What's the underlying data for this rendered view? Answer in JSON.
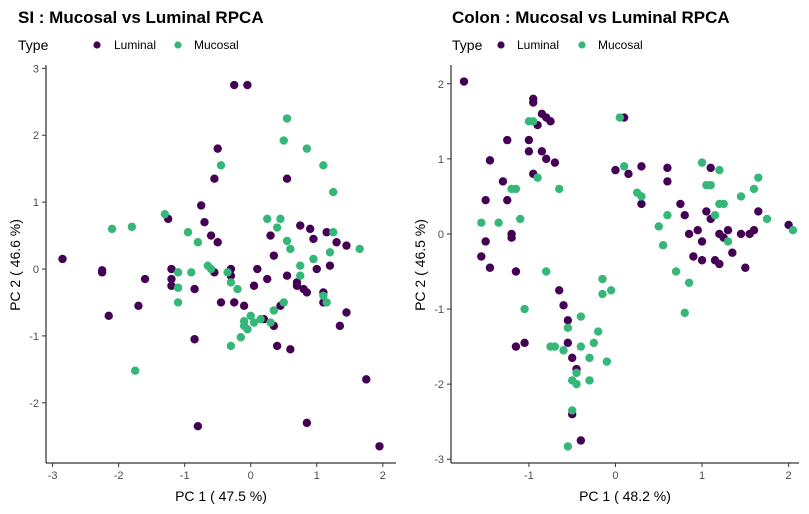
{
  "colors": {
    "Luminal": "#440154",
    "Mucosal": "#35b779"
  },
  "chart_data": [
    {
      "type": "scatter",
      "title": "SI : Mucosal vs Luminal RPCA",
      "legend_title": "Type",
      "legend_position": "top-left",
      "xlabel": "PC 1 ( 47.5 %)",
      "ylabel": "PC 2 ( 46.6 %)",
      "xlim": [
        -3.1,
        2.2
      ],
      "ylim": [
        -2.9,
        3.05
      ],
      "xticks": [
        -3,
        -2,
        -1,
        0,
        1,
        2
      ],
      "yticks": [
        -2,
        -1,
        0,
        1,
        2,
        3
      ],
      "grid": false,
      "series": [
        {
          "name": "Luminal",
          "points": [
            [
              -2.85,
              0.15
            ],
            [
              -2.25,
              -0.02
            ],
            [
              -2.25,
              -0.05
            ],
            [
              -2.15,
              -0.7
            ],
            [
              -1.7,
              -0.55
            ],
            [
              -1.6,
              -0.15
            ],
            [
              -1.2,
              -0.25
            ],
            [
              -1.2,
              -0.15
            ],
            [
              -1.2,
              0.0
            ],
            [
              -0.85,
              -0.3
            ],
            [
              -0.7,
              0.7
            ],
            [
              -0.75,
              0.95
            ],
            [
              -0.6,
              0.5
            ],
            [
              -0.55,
              1.35
            ],
            [
              -0.5,
              0.4
            ],
            [
              -0.45,
              -0.5
            ],
            [
              -0.3,
              0.0
            ],
            [
              -0.3,
              -0.1
            ],
            [
              -0.25,
              -0.5
            ],
            [
              -0.25,
              2.75
            ],
            [
              -0.05,
              2.75
            ],
            [
              -0.1,
              -0.55
            ],
            [
              0.1,
              0.0
            ],
            [
              0.05,
              -0.25
            ],
            [
              0.2,
              -0.75
            ],
            [
              0.25,
              -0.15
            ],
            [
              0.35,
              -0.85
            ],
            [
              0.35,
              0.2
            ],
            [
              0.45,
              -0.55
            ],
            [
              0.55,
              -0.1
            ],
            [
              0.6,
              -1.2
            ],
            [
              0.7,
              -0.2
            ],
            [
              0.75,
              0.65
            ],
            [
              0.7,
              -0.25
            ],
            [
              0.85,
              -0.35
            ],
            [
              0.8,
              -0.3
            ],
            [
              0.9,
              0.6
            ],
            [
              0.95,
              0.45
            ],
            [
              1.0,
              0.0
            ],
            [
              1.1,
              -0.35
            ],
            [
              1.1,
              -0.5
            ],
            [
              1.15,
              0.55
            ],
            [
              1.2,
              0.05
            ],
            [
              1.3,
              0.4
            ],
            [
              1.35,
              -0.85
            ],
            [
              1.45,
              0.35
            ],
            [
              1.45,
              -0.65
            ],
            [
              1.75,
              -1.65
            ],
            [
              1.95,
              -2.65
            ],
            [
              -0.85,
              -1.05
            ],
            [
              -0.5,
              1.8
            ],
            [
              -0.55,
              -0.05
            ],
            [
              0.4,
              -1.15
            ],
            [
              0.85,
              -2.3
            ],
            [
              -0.8,
              -2.35
            ],
            [
              0.3,
              0.5
            ],
            [
              0.55,
              1.35
            ],
            [
              -1.25,
              0.75
            ]
          ]
        },
        {
          "name": "Mucosal",
          "points": [
            [
              -2.1,
              0.6
            ],
            [
              -1.8,
              0.63
            ],
            [
              -1.75,
              -1.52
            ],
            [
              -1.3,
              0.82
            ],
            [
              -1.1,
              -0.05
            ],
            [
              -1.1,
              -0.28
            ],
            [
              -0.95,
              0.55
            ],
            [
              -0.8,
              0.4
            ],
            [
              -0.65,
              0.05
            ],
            [
              -0.45,
              1.55
            ],
            [
              -0.35,
              -0.05
            ],
            [
              -0.3,
              -0.2
            ],
            [
              -0.2,
              -0.3
            ],
            [
              -0.3,
              -1.15
            ],
            [
              -0.15,
              -1.02
            ],
            [
              -0.1,
              -0.85
            ],
            [
              -0.1,
              -0.78
            ],
            [
              -0.05,
              -0.9
            ],
            [
              0.0,
              -0.7
            ],
            [
              0.05,
              -0.8
            ],
            [
              0.15,
              -0.75
            ],
            [
              0.25,
              0.75
            ],
            [
              0.3,
              -0.8
            ],
            [
              0.35,
              -0.62
            ],
            [
              0.4,
              0.62
            ],
            [
              0.45,
              0.75
            ],
            [
              0.5,
              1.92
            ],
            [
              0.5,
              -0.5
            ],
            [
              0.55,
              0.42
            ],
            [
              0.6,
              0.3
            ],
            [
              0.75,
              -0.1
            ],
            [
              0.75,
              0.05
            ],
            [
              0.85,
              1.8
            ],
            [
              1.1,
              1.55
            ],
            [
              1.1,
              -0.4
            ],
            [
              1.15,
              -0.5
            ],
            [
              1.2,
              0.25
            ],
            [
              1.25,
              0.55
            ],
            [
              1.65,
              0.3
            ],
            [
              1.25,
              1.15
            ],
            [
              -0.6,
              0.0
            ],
            [
              0.95,
              0.15
            ],
            [
              0.55,
              2.25
            ],
            [
              -0.9,
              -0.05
            ],
            [
              -1.1,
              -0.5
            ]
          ]
        }
      ]
    },
    {
      "type": "scatter",
      "title": "Colon : Mucosal vs Luminal RPCA",
      "legend_title": "Type",
      "legend_position": "top-left",
      "xlabel": "PC 1 ( 48.2 %)",
      "ylabel": "PC 2 ( 46.5 %)",
      "xlim": [
        -1.9,
        2.12
      ],
      "ylim": [
        -3.05,
        2.25
      ],
      "xticks": [
        -1,
        0,
        1,
        2
      ],
      "yticks": [
        -3,
        -2,
        -1,
        0,
        1,
        2
      ],
      "grid": false,
      "series": [
        {
          "name": "Luminal",
          "points": [
            [
              -1.75,
              2.03
            ],
            [
              -1.55,
              -0.3
            ],
            [
              -1.5,
              0.45
            ],
            [
              -1.5,
              -0.1
            ],
            [
              -1.45,
              0.98
            ],
            [
              -1.45,
              -0.45
            ],
            [
              -1.3,
              0.7
            ],
            [
              -1.25,
              1.25
            ],
            [
              -1.25,
              0.45
            ],
            [
              -1.2,
              0.0
            ],
            [
              -1.2,
              -0.05
            ],
            [
              -1.15,
              -0.5
            ],
            [
              -1.15,
              -1.5
            ],
            [
              -1.05,
              -1.45
            ],
            [
              -1.0,
              1.25
            ],
            [
              -1.0,
              1.1
            ],
            [
              -0.95,
              1.8
            ],
            [
              -0.95,
              1.75
            ],
            [
              -0.95,
              0.8
            ],
            [
              -0.9,
              1.45
            ],
            [
              -0.85,
              1.6
            ],
            [
              -0.85,
              1.1
            ],
            [
              -0.8,
              1.55
            ],
            [
              -0.8,
              1.0
            ],
            [
              -0.75,
              1.5
            ],
            [
              -0.7,
              0.95
            ],
            [
              -0.65,
              -0.75
            ],
            [
              -0.6,
              -0.95
            ],
            [
              -0.55,
              -1.15
            ],
            [
              -0.55,
              -1.45
            ],
            [
              -0.5,
              -1.65
            ],
            [
              -0.5,
              -2.4
            ],
            [
              -0.45,
              -1.8
            ],
            [
              -0.4,
              -2.75
            ],
            [
              0.0,
              0.85
            ],
            [
              0.1,
              1.55
            ],
            [
              0.15,
              0.8
            ],
            [
              0.3,
              0.4
            ],
            [
              0.3,
              0.9
            ],
            [
              0.6,
              0.88
            ],
            [
              0.6,
              0.7
            ],
            [
              0.75,
              0.4
            ],
            [
              0.8,
              0.25
            ],
            [
              0.85,
              0.0
            ],
            [
              0.9,
              -0.3
            ],
            [
              0.95,
              0.05
            ],
            [
              1.0,
              -0.1
            ],
            [
              1.05,
              0.3
            ],
            [
              1.1,
              0.2
            ],
            [
              1.1,
              0.88
            ],
            [
              1.15,
              -0.35
            ],
            [
              1.2,
              0.0
            ],
            [
              1.25,
              -0.05
            ],
            [
              1.35,
              -0.25
            ],
            [
              1.45,
              0.0
            ],
            [
              1.5,
              -0.45
            ],
            [
              1.55,
              0.0
            ],
            [
              1.6,
              0.05
            ],
            [
              1.65,
              0.3
            ],
            [
              2.0,
              0.12
            ],
            [
              1.3,
              0.05
            ],
            [
              1.2,
              -0.4
            ],
            [
              1.0,
              -0.35
            ]
          ]
        },
        {
          "name": "Mucosal",
          "points": [
            [
              -1.55,
              0.15
            ],
            [
              -1.35,
              0.15
            ],
            [
              -1.2,
              0.6
            ],
            [
              -1.15,
              0.6
            ],
            [
              -1.05,
              -1.0
            ],
            [
              -1.0,
              1.5
            ],
            [
              -0.95,
              1.5
            ],
            [
              -0.9,
              0.75
            ],
            [
              -0.8,
              -0.5
            ],
            [
              -0.75,
              -1.5
            ],
            [
              -0.7,
              -1.5
            ],
            [
              -0.65,
              0.6
            ],
            [
              -0.6,
              -1.55
            ],
            [
              -0.55,
              -1.25
            ],
            [
              -0.5,
              -1.95
            ],
            [
              -0.5,
              -2.35
            ],
            [
              -0.45,
              -1.85
            ],
            [
              -0.45,
              -2.0
            ],
            [
              -0.4,
              -1.5
            ],
            [
              -0.4,
              -1.1
            ],
            [
              -0.3,
              -1.65
            ],
            [
              -0.3,
              -1.95
            ],
            [
              -0.25,
              -1.45
            ],
            [
              -0.2,
              -1.3
            ],
            [
              -0.15,
              -0.6
            ],
            [
              -0.15,
              -0.8
            ],
            [
              -0.1,
              -1.7
            ],
            [
              -0.05,
              -0.75
            ],
            [
              -0.55,
              -2.83
            ],
            [
              0.05,
              1.55
            ],
            [
              0.1,
              0.9
            ],
            [
              0.25,
              0.55
            ],
            [
              0.3,
              0.5
            ],
            [
              0.5,
              0.1
            ],
            [
              0.55,
              -0.15
            ],
            [
              0.6,
              0.25
            ],
            [
              0.7,
              -0.5
            ],
            [
              0.8,
              -1.05
            ],
            [
              0.85,
              -0.65
            ],
            [
              1.0,
              0.95
            ],
            [
              1.05,
              0.65
            ],
            [
              1.1,
              0.65
            ],
            [
              1.2,
              0.4
            ],
            [
              1.2,
              0.85
            ],
            [
              1.25,
              0.4
            ],
            [
              1.45,
              0.5
            ],
            [
              1.6,
              0.6
            ],
            [
              1.65,
              0.75
            ],
            [
              1.75,
              0.2
            ],
            [
              2.05,
              0.05
            ],
            [
              1.3,
              -0.1
            ],
            [
              1.15,
              0.25
            ],
            [
              -1.1,
              0.2
            ]
          ]
        }
      ]
    }
  ]
}
